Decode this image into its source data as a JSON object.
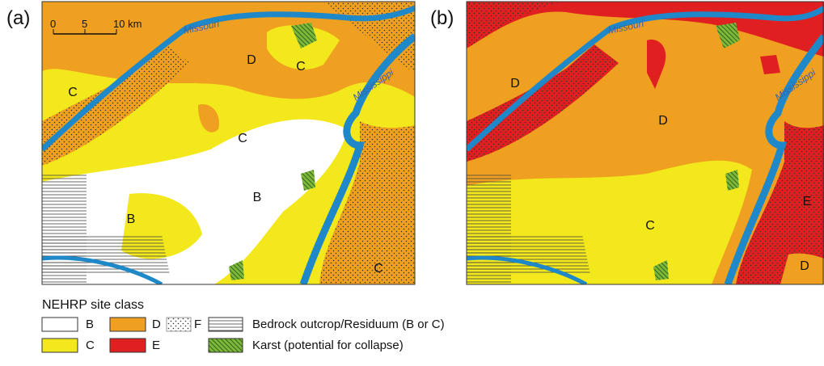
{
  "panels": [
    {
      "label": "(a)",
      "scale": [
        "0",
        "5",
        "10 km"
      ],
      "rivers": [
        "Missouri",
        "Mississippi"
      ],
      "classes": [
        "C",
        "D",
        "C",
        "C",
        "B",
        "B",
        "C"
      ]
    },
    {
      "label": "(b)",
      "rivers": [
        "Missouri",
        "Mississippi"
      ],
      "classes": [
        "D",
        "D",
        "C",
        "E",
        "D"
      ]
    }
  ],
  "legend": {
    "title": "NEHRP site class",
    "items": [
      "B",
      "C",
      "D",
      "E",
      "F",
      "Bedrock outcrop/Residuum (B or C)",
      "Karst (potential for collapse)"
    ]
  }
}
